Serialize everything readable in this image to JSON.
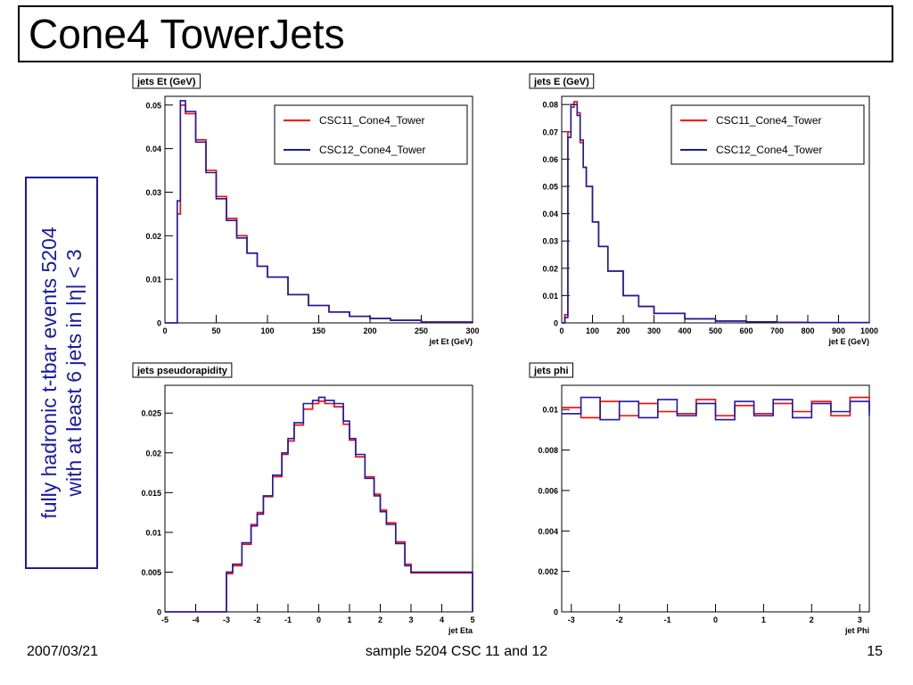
{
  "slide": {
    "title": "Cone4 TowerJets",
    "side_line1": "fully hadronic t-tbar events 5204",
    "side_line2": "with at least 6 jets in |η| < 3",
    "footer_date": "2007/03/21",
    "footer_center": "sample 5204 CSC 11 and 12",
    "footer_page": "15"
  },
  "colors": {
    "csc11": "#ff0000",
    "csc12": "#1a1aa6"
  },
  "chart_data": [
    {
      "type": "line",
      "title": "jets Et (GeV)",
      "xlabel": "jet Et (GeV)",
      "ylabel": "",
      "xlim": [
        0,
        300
      ],
      "ylim": [
        0,
        0.052
      ],
      "xticks": [
        0,
        50,
        100,
        150,
        200,
        250,
        300
      ],
      "yticks": [
        0,
        0.01,
        0.02,
        0.03,
        0.04,
        0.05
      ],
      "ytick_labels": [
        "0",
        "0.01",
        "0.02",
        "0.03",
        "0.04",
        "0.05"
      ],
      "legend": "top-right",
      "series": [
        {
          "name": "CSC11_Cone4_Tower",
          "color": "#ff0000",
          "x": [
            0,
            10,
            12,
            15,
            20,
            30,
            40,
            50,
            60,
            70,
            80,
            90,
            100,
            120,
            140,
            160,
            180,
            200,
            220,
            250,
            300
          ],
          "y": [
            0,
            0,
            0.025,
            0.05,
            0.048,
            0.042,
            0.035,
            0.029,
            0.024,
            0.02,
            0.016,
            0.013,
            0.0105,
            0.0065,
            0.004,
            0.0025,
            0.0015,
            0.001,
            0.0006,
            0.0002,
            0
          ]
        },
        {
          "name": "CSC12_Cone4_Tower",
          "color": "#1a1aa6",
          "x": [
            0,
            10,
            12,
            15,
            20,
            30,
            40,
            50,
            60,
            70,
            80,
            90,
            100,
            120,
            140,
            160,
            180,
            200,
            220,
            250,
            300
          ],
          "y": [
            0,
            0,
            0.028,
            0.051,
            0.0485,
            0.0415,
            0.0345,
            0.0285,
            0.0235,
            0.0195,
            0.016,
            0.013,
            0.0105,
            0.0065,
            0.004,
            0.0025,
            0.0015,
            0.001,
            0.0006,
            0.0002,
            0
          ]
        }
      ]
    },
    {
      "type": "line",
      "title": "jets E (GeV)",
      "xlabel": "jet E (GeV)",
      "ylabel": "",
      "xlim": [
        0,
        1000
      ],
      "ylim": [
        0,
        0.083
      ],
      "xticks": [
        0,
        100,
        200,
        300,
        400,
        500,
        600,
        700,
        800,
        900,
        1000
      ],
      "yticks": [
        0,
        0.01,
        0.02,
        0.03,
        0.04,
        0.05,
        0.06,
        0.07,
        0.08
      ],
      "ytick_labels": [
        "0",
        "0.01",
        "0.02",
        "0.03",
        "0.04",
        "0.05",
        "0.06",
        "0.07",
        "0.08"
      ],
      "legend": "top-right",
      "series": [
        {
          "name": "CSC11_Cone4_Tower",
          "color": "#ff0000",
          "x": [
            0,
            10,
            20,
            30,
            40,
            50,
            60,
            70,
            80,
            100,
            120,
            150,
            200,
            250,
            300,
            400,
            500,
            600,
            700,
            800,
            1000
          ],
          "y": [
            0,
            0.003,
            0.07,
            0.079,
            0.081,
            0.077,
            0.066,
            0.057,
            0.05,
            0.037,
            0.028,
            0.019,
            0.01,
            0.006,
            0.0035,
            0.0015,
            0.0007,
            0.0004,
            0.0002,
            0.0001,
            0
          ]
        },
        {
          "name": "CSC12_Cone4_Tower",
          "color": "#1a1aa6",
          "x": [
            0,
            10,
            20,
            30,
            40,
            50,
            60,
            70,
            80,
            100,
            120,
            150,
            200,
            250,
            300,
            400,
            500,
            600,
            700,
            800,
            1000
          ],
          "y": [
            0,
            0.002,
            0.068,
            0.08,
            0.08,
            0.076,
            0.067,
            0.057,
            0.05,
            0.037,
            0.028,
            0.019,
            0.01,
            0.006,
            0.0035,
            0.0015,
            0.0007,
            0.0004,
            0.0002,
            0.0001,
            0
          ]
        }
      ]
    },
    {
      "type": "line",
      "title": "jets pseudorapidity",
      "xlabel": "jet Eta",
      "ylabel": "",
      "xlim": [
        -5,
        5
      ],
      "ylim": [
        0,
        0.0285
      ],
      "xticks": [
        -5,
        -4,
        -3,
        -2,
        -1,
        0,
        1,
        2,
        3,
        4,
        5
      ],
      "yticks": [
        0,
        0.005,
        0.01,
        0.015,
        0.02,
        0.025
      ],
      "ytick_labels": [
        "0",
        "0.005",
        "0.01",
        "0.015",
        "0.02",
        "0.025"
      ],
      "legend": "none",
      "series": [
        {
          "name": "CSC11_Cone4_Tower",
          "color": "#ff0000",
          "x": [
            -5,
            -3,
            -2.8,
            -2.5,
            -2.2,
            -2,
            -1.8,
            -1.5,
            -1.2,
            -1,
            -0.8,
            -0.5,
            -0.2,
            0,
            0.2,
            0.5,
            0.8,
            1,
            1.2,
            1.5,
            1.8,
            2,
            2.2,
            2.5,
            2.8,
            3,
            5
          ],
          "y": [
            0,
            0.0048,
            0.0058,
            0.0085,
            0.011,
            0.0125,
            0.0145,
            0.017,
            0.0198,
            0.0215,
            0.0235,
            0.0255,
            0.0262,
            0.0265,
            0.0262,
            0.0258,
            0.0236,
            0.0216,
            0.0195,
            0.017,
            0.0148,
            0.0128,
            0.0112,
            0.0088,
            0.006,
            0.0049,
            0
          ]
        },
        {
          "name": "CSC12_Cone4_Tower",
          "color": "#1a1aa6",
          "x": [
            -5,
            -3,
            -2.8,
            -2.5,
            -2.2,
            -2,
            -1.8,
            -1.5,
            -1.2,
            -1,
            -0.8,
            -0.5,
            -0.2,
            0,
            0.2,
            0.5,
            0.8,
            1,
            1.2,
            1.5,
            1.8,
            2,
            2.2,
            2.5,
            2.8,
            3,
            5
          ],
          "y": [
            0,
            0.005,
            0.006,
            0.0087,
            0.0108,
            0.0123,
            0.0146,
            0.0172,
            0.02,
            0.0218,
            0.0238,
            0.0262,
            0.0266,
            0.027,
            0.0266,
            0.0262,
            0.024,
            0.0218,
            0.0198,
            0.0168,
            0.0146,
            0.0126,
            0.011,
            0.0086,
            0.0058,
            0.005,
            0
          ]
        }
      ]
    },
    {
      "type": "line",
      "title": "jets phi",
      "xlabel": "jet Phi",
      "ylabel": "",
      "xlim": [
        -3.2,
        3.2
      ],
      "ylim": [
        0,
        0.0112
      ],
      "xticks": [
        -3,
        -2,
        -1,
        0,
        1,
        2,
        3
      ],
      "yticks": [
        0,
        0.002,
        0.004,
        0.006,
        0.008,
        0.01
      ],
      "ytick_labels": [
        "0",
        "0.002",
        "0.004",
        "0.006",
        "0.008",
        "0.01"
      ],
      "legend": "none",
      "series": [
        {
          "name": "CSC11_Cone4_Tower",
          "color": "#ff0000",
          "x": [
            -3.2,
            -2.8,
            -2.4,
            -2,
            -1.6,
            -1.2,
            -0.8,
            -0.4,
            0,
            0.4,
            0.8,
            1.2,
            1.6,
            2,
            2.4,
            2.8,
            3.2
          ],
          "y": [
            0.0101,
            0.0096,
            0.0104,
            0.0097,
            0.0103,
            0.0099,
            0.0098,
            0.0105,
            0.0097,
            0.0102,
            0.0098,
            0.0103,
            0.0099,
            0.0104,
            0.0097,
            0.0106,
            0.0099
          ]
        },
        {
          "name": "CSC12_Cone4_Tower",
          "color": "#1a1aa6",
          "x": [
            -3.2,
            -2.8,
            -2.4,
            -2,
            -1.6,
            -1.2,
            -0.8,
            -0.4,
            0,
            0.4,
            0.8,
            1.2,
            1.6,
            2,
            2.4,
            2.8,
            3.2
          ],
          "y": [
            0.0098,
            0.0106,
            0.0095,
            0.0104,
            0.0096,
            0.0105,
            0.0097,
            0.0103,
            0.0095,
            0.0104,
            0.0097,
            0.0105,
            0.0096,
            0.0103,
            0.0099,
            0.0104,
            0.0097
          ]
        }
      ]
    }
  ]
}
